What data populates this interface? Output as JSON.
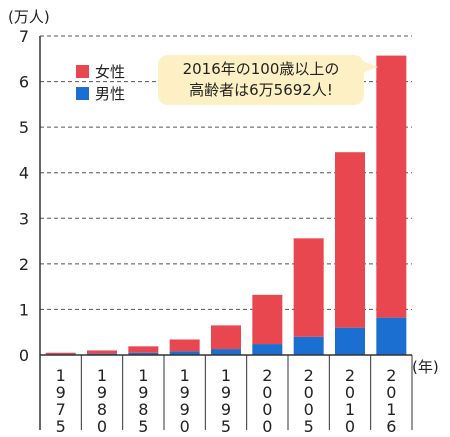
{
  "chart_data": {
    "type": "bar",
    "stacked": true,
    "categories": [
      "1975",
      "1980",
      "1985",
      "1990",
      "1995",
      "2000",
      "2005",
      "2010",
      "2016"
    ],
    "series": [
      {
        "name": "男性",
        "color": "#1a6fd0",
        "values": [
          0.02,
          0.03,
          0.05,
          0.08,
          0.13,
          0.24,
          0.4,
          0.6,
          0.82
        ]
      },
      {
        "name": "女性",
        "color": "#e8474f",
        "values": [
          0.03,
          0.07,
          0.14,
          0.26,
          0.52,
          1.08,
          2.16,
          3.85,
          5.75
        ]
      }
    ],
    "ylabel": "(万人)",
    "xlabel": "(年)",
    "ylim": [
      0,
      7
    ],
    "yticks": [
      "0",
      "1",
      "2",
      "3",
      "4",
      "5",
      "6",
      "7"
    ],
    "grid": "dashed horizontal",
    "legend_position": "top-left"
  },
  "callout": {
    "line1": "2016年の100歳以上の",
    "line2": "高齢者は6万5692人!"
  }
}
